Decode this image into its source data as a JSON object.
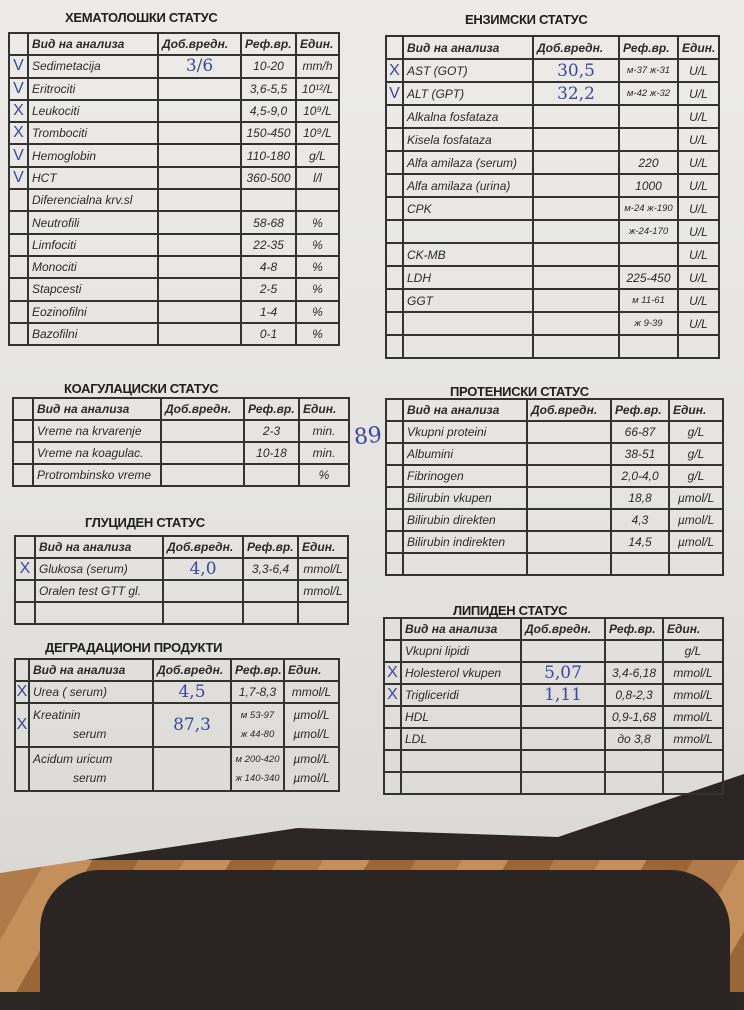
{
  "headers": {
    "name": "Вид на анализа",
    "value": "Доб.вредн.",
    "ref": "Реф.вр.",
    "unit": "Един."
  },
  "side_note": "89",
  "tables": [
    {
      "id": "hematology",
      "title": "ХЕМАТОЛОШКИ СТАТУС",
      "rows": [
        {
          "mark": "V",
          "name": "Sedimetacija",
          "value": "3/6",
          "ref": "10-20",
          "unit": "mm/h"
        },
        {
          "mark": "V",
          "name": "Eritrociti",
          "value": "",
          "ref": "3,6-5,5",
          "unit": "10¹²/L"
        },
        {
          "mark": "X",
          "name": "Leukociti",
          "value": "",
          "ref": "4,5-9,0",
          "unit": "10⁹/L"
        },
        {
          "mark": "X",
          "name": "Trombociti",
          "value": "",
          "ref": "150-450",
          "unit": "10⁹/L"
        },
        {
          "mark": "V",
          "name": "Hemoglobin",
          "value": "",
          "ref": "110-180",
          "unit": "g/L"
        },
        {
          "mark": "V",
          "name": "HCT",
          "value": "",
          "ref": "360-500",
          "unit": "l/l"
        },
        {
          "mark": "",
          "name": "Diferencialna krv.sl",
          "value": "",
          "ref": "",
          "unit": ""
        },
        {
          "mark": "",
          "name": "Neutrofili",
          "value": "",
          "ref": "58-68",
          "unit": "%"
        },
        {
          "mark": "",
          "name": "Limfociti",
          "value": "",
          "ref": "22-35",
          "unit": "%"
        },
        {
          "mark": "",
          "name": "Monociti",
          "value": "",
          "ref": "4-8",
          "unit": "%"
        },
        {
          "mark": "",
          "name": "Stapcesti",
          "value": "",
          "ref": "2-5",
          "unit": "%"
        },
        {
          "mark": "",
          "name": "Eozinofilni",
          "value": "",
          "ref": "1-4",
          "unit": "%"
        },
        {
          "mark": "",
          "name": "Bazofilni",
          "value": "",
          "ref": "0-1",
          "unit": "%"
        }
      ]
    },
    {
      "id": "enzymes",
      "title": "ЕНЗИМСКИ СТАТУС",
      "rows": [
        {
          "mark": "X",
          "name": "AST (GOT)",
          "value": "30,5",
          "ref": "м-37 ж-31",
          "unit": "U/L"
        },
        {
          "mark": "V",
          "name": "ALT (GPT)",
          "value": "32,2",
          "ref": "м-42 ж-32",
          "unit": "U/L"
        },
        {
          "mark": "",
          "name": "Alkalna fosfataza",
          "value": "",
          "ref": "",
          "unit": "U/L"
        },
        {
          "mark": "",
          "name": "Kisela fosfataza",
          "value": "",
          "ref": "",
          "unit": "U/L"
        },
        {
          "mark": "",
          "name": "Alfa amilaza (serum)",
          "value": "",
          "ref": "220",
          "unit": "U/L"
        },
        {
          "mark": "",
          "name": "Alfa amilaza (urina)",
          "value": "",
          "ref": "1000",
          "unit": "U/L"
        },
        {
          "mark": "",
          "name": "CPK",
          "value": "",
          "ref": "м-24 ж-190",
          "unit": "U/L"
        },
        {
          "mark": "",
          "name": "",
          "value": "",
          "ref": "ж-24-170",
          "unit": "U/L"
        },
        {
          "mark": "",
          "name": "CK-MB",
          "value": "",
          "ref": "",
          "unit": "U/L"
        },
        {
          "mark": "",
          "name": "LDH",
          "value": "",
          "ref": "225-450",
          "unit": "U/L"
        },
        {
          "mark": "",
          "name": "GGT",
          "value": "",
          "ref": "м 11-61",
          "unit": "U/L"
        },
        {
          "mark": "",
          "name": "",
          "value": "",
          "ref": "ж 9-39",
          "unit": "U/L"
        },
        {
          "mark": "",
          "name": "",
          "value": "",
          "ref": "",
          "unit": ""
        }
      ]
    },
    {
      "id": "coagulation",
      "title": "КОАГУЛАЦИСКИ СТАТУС",
      "rows": [
        {
          "mark": "",
          "name": "Vreme na krvarenje",
          "value": "",
          "ref": "2-3",
          "unit": "min."
        },
        {
          "mark": "",
          "name": "Vreme na koagulac.",
          "value": "",
          "ref": "10-18",
          "unit": "min."
        },
        {
          "mark": "",
          "name": "Protrombinsko vreme",
          "value": "",
          "ref": "",
          "unit": "%"
        }
      ]
    },
    {
      "id": "glucose",
      "title": "ГЛУЦИДЕН СТАТУС",
      "rows": [
        {
          "mark": "X",
          "name": "Glukosa (serum)",
          "value": "4,0",
          "ref": "3,3-6,4",
          "unit": "mmol/L"
        },
        {
          "mark": "",
          "name": "Oralen test GTT gl.",
          "value": "",
          "ref": "",
          "unit": "mmol/L"
        },
        {
          "mark": "",
          "name": "",
          "value": "",
          "ref": "",
          "unit": ""
        }
      ]
    },
    {
      "id": "degradation",
      "title": "ДЕГРАДАЦИОНИ ПРОДУКТИ",
      "rows": [
        {
          "mark": "X",
          "name": "Urea ( serum)",
          "value": "4,5",
          "ref": "1,7-8,3",
          "unit": "mmol/L"
        },
        {
          "mark": "X",
          "name": "Kreatinin",
          "sub": "serum",
          "value": "87,3",
          "ref": [
            "м 53-97",
            "ж 44-80"
          ],
          "unit": [
            "µmol/L",
            "µmol/L"
          ]
        },
        {
          "mark": "",
          "name": "Acidum uricum",
          "sub": "serum",
          "value": "",
          "ref": [
            "м 200-420",
            "ж 140-340"
          ],
          "unit": [
            "µmol/L",
            "µmol/L"
          ]
        }
      ]
    },
    {
      "id": "proteins",
      "title": "ПРОТЕНИСКИ СТАТУС",
      "rows": [
        {
          "mark": "",
          "name": "Vkupni proteini",
          "value": "",
          "ref": "66-87",
          "unit": "g/L"
        },
        {
          "mark": "",
          "name": "Albumini",
          "value": "",
          "ref": "38-51",
          "unit": "g/L"
        },
        {
          "mark": "",
          "name": "Fibrinogen",
          "value": "",
          "ref": "2,0-4,0",
          "unit": "g/L"
        },
        {
          "mark": "",
          "name": "Bilirubin vkupen",
          "value": "",
          "ref": "18,8",
          "unit": "µmol/L"
        },
        {
          "mark": "",
          "name": "Bilirubin direkten",
          "value": "",
          "ref": "4,3",
          "unit": "µmol/L"
        },
        {
          "mark": "",
          "name": "Bilirubin indirekten",
          "value": "",
          "ref": "14,5",
          "unit": "µmol/L"
        },
        {
          "mark": "",
          "name": "",
          "value": "",
          "ref": "",
          "unit": ""
        }
      ]
    },
    {
      "id": "lipids",
      "title": "ЛИПИДЕН СТАТУС",
      "rows": [
        {
          "mark": "",
          "name": "Vkupni lipidi",
          "value": "",
          "ref": "",
          "unit": "g/L"
        },
        {
          "mark": "X",
          "name": "Holesterol vkupen",
          "value": "5,07",
          "ref": "3,4-6,18",
          "unit": "mmol/L"
        },
        {
          "mark": "X",
          "name": "Trigliceridi",
          "value": "1,11",
          "ref": "0,8-2,3",
          "unit": "mmol/L"
        },
        {
          "mark": "",
          "name": "HDL",
          "value": "",
          "ref": "0,9-1,68",
          "unit": "mmol/L"
        },
        {
          "mark": "",
          "name": "LDL",
          "value": "",
          "ref": "до 3,8",
          "unit": "mmol/L"
        },
        {
          "mark": "",
          "name": "",
          "value": "",
          "ref": "",
          "unit": ""
        },
        {
          "mark": "",
          "name": "",
          "value": "",
          "ref": "",
          "unit": ""
        }
      ]
    }
  ]
}
